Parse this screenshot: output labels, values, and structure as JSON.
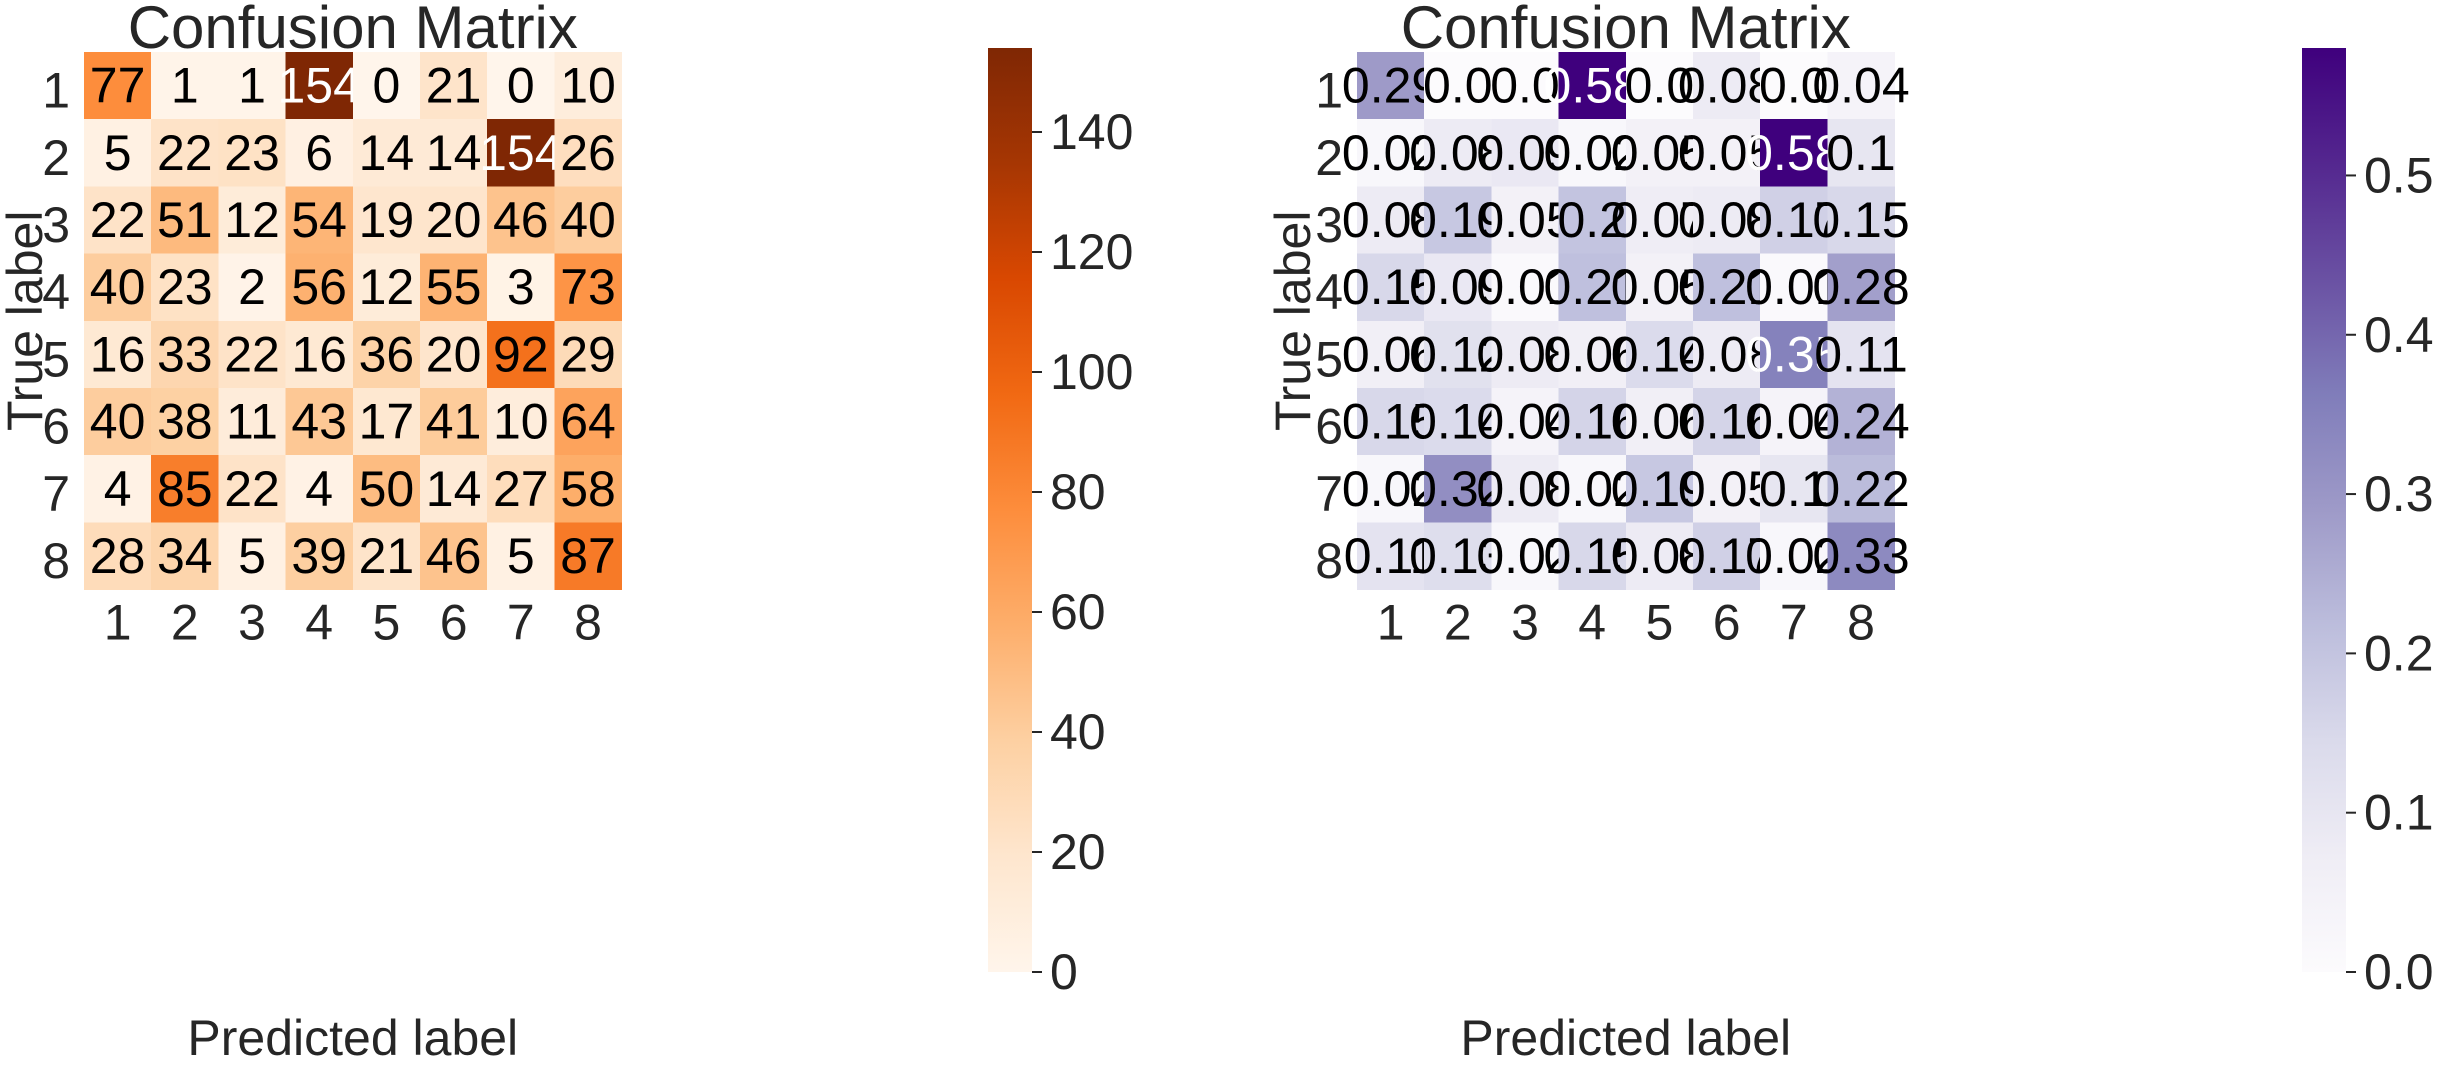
{
  "chart_data": [
    {
      "type": "heatmap",
      "title": "Confusion Matrix",
      "xlabel": "Predicted label",
      "ylabel": "True label",
      "x_categories": [
        "1",
        "2",
        "3",
        "4",
        "5",
        "6",
        "7",
        "8"
      ],
      "y_categories": [
        "1",
        "2",
        "3",
        "4",
        "5",
        "6",
        "7",
        "8"
      ],
      "values": [
        [
          77,
          1,
          1,
          154,
          0,
          21,
          0,
          10
        ],
        [
          5,
          22,
          23,
          6,
          14,
          14,
          154,
          26
        ],
        [
          22,
          51,
          12,
          54,
          19,
          20,
          46,
          40
        ],
        [
          40,
          23,
          2,
          56,
          12,
          55,
          3,
          73
        ],
        [
          16,
          33,
          22,
          16,
          36,
          20,
          92,
          29
        ],
        [
          40,
          38,
          11,
          43,
          17,
          41,
          10,
          64
        ],
        [
          4,
          85,
          22,
          4,
          50,
          14,
          27,
          58
        ],
        [
          28,
          34,
          5,
          39,
          21,
          46,
          5,
          87
        ]
      ],
      "value_labels": [
        [
          "77",
          "1",
          "1",
          "154",
          "0",
          "21",
          "0",
          "10"
        ],
        [
          "5",
          "22",
          "23",
          "6",
          "14",
          "14",
          "154",
          "26"
        ],
        [
          "22",
          "51",
          "12",
          "54",
          "19",
          "20",
          "46",
          "40"
        ],
        [
          "40",
          "23",
          "2",
          "56",
          "12",
          "55",
          "3",
          "73"
        ],
        [
          "16",
          "33",
          "22",
          "16",
          "36",
          "20",
          "92",
          "29"
        ],
        [
          "40",
          "38",
          "11",
          "43",
          "17",
          "41",
          "10",
          "64"
        ],
        [
          "4",
          "85",
          "22",
          "4",
          "50",
          "14",
          "27",
          "58"
        ],
        [
          "28",
          "34",
          "5",
          "39",
          "21",
          "46",
          "5",
          "87"
        ]
      ],
      "colormap": "Oranges",
      "color_range": [
        0,
        154
      ],
      "colorbar": {
        "ticks": [
          0,
          20,
          40,
          60,
          80,
          100,
          120,
          140
        ],
        "tick_labels": [
          "0",
          "20",
          "40",
          "60",
          "80",
          "100",
          "120",
          "140"
        ]
      }
    },
    {
      "type": "heatmap",
      "title": "Confusion Matrix",
      "xlabel": "Predicted label",
      "ylabel": "True label",
      "x_categories": [
        "1",
        "2",
        "3",
        "4",
        "5",
        "6",
        "7",
        "8"
      ],
      "y_categories": [
        "1",
        "2",
        "3",
        "4",
        "5",
        "6",
        "7",
        "8"
      ],
      "values": [
        [
          0.29,
          0.0,
          0.0,
          0.58,
          0.0,
          0.08,
          0.0,
          0.04
        ],
        [
          0.02,
          0.08,
          0.09,
          0.02,
          0.05,
          0.05,
          0.58,
          0.1
        ],
        [
          0.08,
          0.19,
          0.05,
          0.2,
          0.07,
          0.08,
          0.17,
          0.15
        ],
        [
          0.15,
          0.09,
          0.01,
          0.21,
          0.05,
          0.21,
          0.01,
          0.28
        ],
        [
          0.06,
          0.12,
          0.08,
          0.06,
          0.14,
          0.08,
          0.35,
          0.11
        ],
        [
          0.15,
          0.14,
          0.04,
          0.16,
          0.06,
          0.16,
          0.04,
          0.24
        ],
        [
          0.02,
          0.32,
          0.08,
          0.02,
          0.19,
          0.05,
          0.1,
          0.22
        ],
        [
          0.11,
          0.13,
          0.02,
          0.15,
          0.08,
          0.17,
          0.02,
          0.33
        ]
      ],
      "value_labels": [
        [
          "0.29",
          "0.0",
          "0.0",
          "0.58",
          "0.0",
          "0.08",
          "0.0",
          "0.04"
        ],
        [
          "0.02",
          "0.08",
          "0.09",
          "0.02",
          "0.05",
          "0.05",
          "0.58",
          "0.1"
        ],
        [
          "0.08",
          "0.19",
          "0.05",
          "0.2",
          "0.07",
          "0.08",
          "0.17",
          "0.15"
        ],
        [
          "0.15",
          "0.09",
          "0.01",
          "0.21",
          "0.05",
          "0.21",
          "0.01",
          "0.28"
        ],
        [
          "0.06",
          "0.12",
          "0.08",
          "0.06",
          "0.14",
          "0.08",
          "0.35",
          "0.11"
        ],
        [
          "0.15",
          "0.14",
          "0.04",
          "0.16",
          "0.06",
          "0.16",
          "0.04",
          "0.24"
        ],
        [
          "0.02",
          "0.32",
          "0.08",
          "0.02",
          "0.19",
          "0.05",
          "0.1",
          "0.22"
        ],
        [
          "0.11",
          "0.13",
          "0.02",
          "0.15",
          "0.08",
          "0.17",
          "0.02",
          "0.33"
        ]
      ],
      "colormap": "Purples",
      "color_range": [
        0,
        0.58
      ],
      "colorbar": {
        "ticks": [
          0,
          0.1,
          0.2,
          0.3,
          0.4,
          0.5
        ],
        "tick_labels": [
          "0.0",
          "0.1",
          "0.2",
          "0.3",
          "0.4",
          "0.5"
        ]
      }
    }
  ]
}
